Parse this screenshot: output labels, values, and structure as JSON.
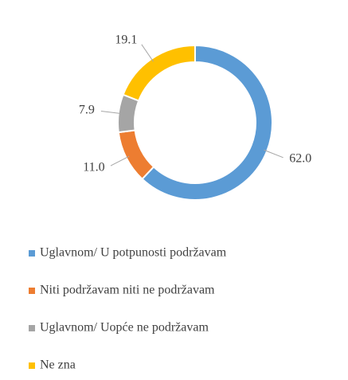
{
  "chart_data": {
    "type": "pie",
    "categories": [
      "Uglavnom/ U potpunosti podržavam",
      "Niti podržavam niti ne podržavam",
      "Uglavnom/ Uopće ne podržavam",
      "Ne zna"
    ],
    "values": [
      62.0,
      11.0,
      7.9,
      19.1
    ],
    "value_labels": [
      "62.0",
      "11.0",
      "7.9",
      "19.1"
    ],
    "colors": [
      "#5b9bd5",
      "#ed7d31",
      "#a5a5a5",
      "#ffc000"
    ],
    "legend": "bottom"
  }
}
